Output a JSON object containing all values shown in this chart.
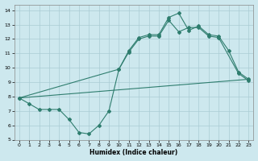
{
  "xlabel": "Humidex (Indice chaleur)",
  "background_color": "#cde8ee",
  "grid_color": "#aaccd4",
  "line_color": "#2e7d6e",
  "xlim": [
    -0.5,
    23.5
  ],
  "ylim": [
    5,
    14.4
  ],
  "xticks": [
    0,
    1,
    2,
    3,
    4,
    5,
    6,
    7,
    8,
    9,
    10,
    11,
    12,
    13,
    14,
    15,
    16,
    17,
    18,
    19,
    20,
    21,
    22,
    23
  ],
  "yticks": [
    5,
    6,
    7,
    8,
    9,
    10,
    11,
    12,
    13,
    14
  ],
  "line1_x": [
    0,
    1,
    2,
    3,
    4,
    5,
    6,
    7,
    8,
    9,
    10,
    11,
    12,
    13,
    14,
    15,
    16,
    17,
    18,
    19,
    20,
    21,
    22,
    23
  ],
  "line1_y": [
    7.9,
    7.5,
    7.1,
    7.1,
    7.1,
    6.4,
    5.5,
    5.4,
    6.0,
    7.0,
    9.9,
    11.2,
    12.1,
    12.3,
    12.3,
    13.5,
    13.8,
    12.6,
    12.9,
    12.3,
    12.2,
    11.2,
    9.7,
    9.2
  ],
  "line2_x": [
    0,
    10,
    11,
    12,
    13,
    14,
    15,
    16,
    17,
    18,
    19,
    20,
    22,
    23
  ],
  "line2_y": [
    7.9,
    9.9,
    11.1,
    12.0,
    12.2,
    12.2,
    13.3,
    12.5,
    12.8,
    12.8,
    12.2,
    12.1,
    9.6,
    9.1
  ],
  "line3_x": [
    0,
    23
  ],
  "line3_y": [
    7.9,
    9.2
  ]
}
